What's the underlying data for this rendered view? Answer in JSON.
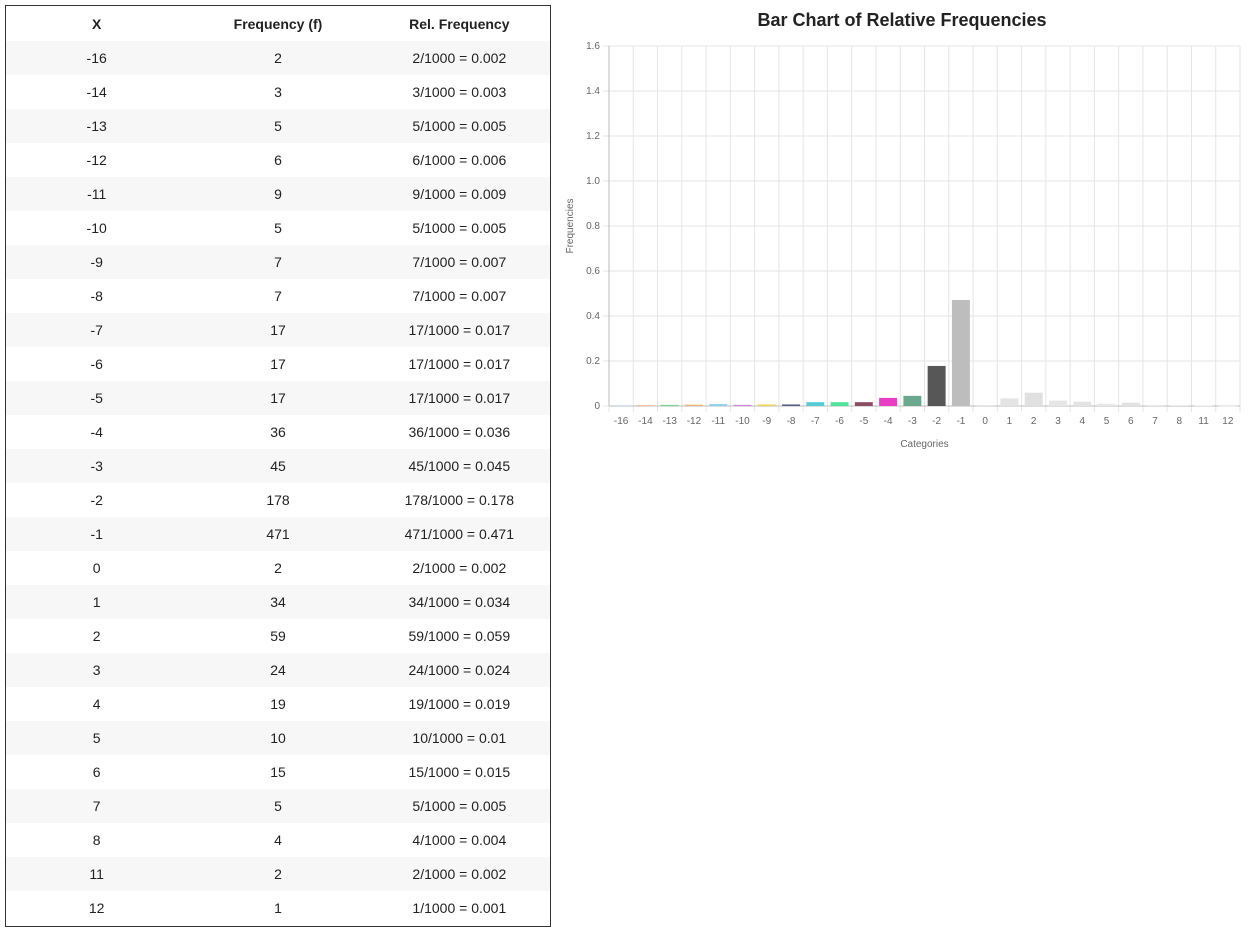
{
  "table": {
    "headers": [
      "X",
      "Frequency (f)",
      "Rel. Frequency"
    ],
    "rows": [
      [
        "-16",
        "2",
        "2/1000 = 0.002"
      ],
      [
        "-14",
        "3",
        "3/1000 = 0.003"
      ],
      [
        "-13",
        "5",
        "5/1000 = 0.005"
      ],
      [
        "-12",
        "6",
        "6/1000 = 0.006"
      ],
      [
        "-11",
        "9",
        "9/1000 = 0.009"
      ],
      [
        "-10",
        "5",
        "5/1000 = 0.005"
      ],
      [
        "-9",
        "7",
        "7/1000 = 0.007"
      ],
      [
        "-8",
        "7",
        "7/1000 = 0.007"
      ],
      [
        "-7",
        "17",
        "17/1000 = 0.017"
      ],
      [
        "-6",
        "17",
        "17/1000 = 0.017"
      ],
      [
        "-5",
        "17",
        "17/1000 = 0.017"
      ],
      [
        "-4",
        "36",
        "36/1000 = 0.036"
      ],
      [
        "-3",
        "45",
        "45/1000 = 0.045"
      ],
      [
        "-2",
        "178",
        "178/1000 = 0.178"
      ],
      [
        "-1",
        "471",
        "471/1000 = 0.471"
      ],
      [
        "0",
        "2",
        "2/1000 = 0.002"
      ],
      [
        "1",
        "34",
        "34/1000 = 0.034"
      ],
      [
        "2",
        "59",
        "59/1000 = 0.059"
      ],
      [
        "3",
        "24",
        "24/1000 = 0.024"
      ],
      [
        "4",
        "19",
        "19/1000 = 0.019"
      ],
      [
        "5",
        "10",
        "10/1000 = 0.01"
      ],
      [
        "6",
        "15",
        "15/1000 = 0.015"
      ],
      [
        "7",
        "5",
        "5/1000 = 0.005"
      ],
      [
        "8",
        "4",
        "4/1000 = 0.004"
      ],
      [
        "11",
        "2",
        "2/1000 = 0.002"
      ],
      [
        "12",
        "1",
        "1/1000 = 0.001"
      ]
    ]
  },
  "chart_data": {
    "type": "bar",
    "title": "Bar Chart of Relative Frequencies",
    "xlabel": "Categories",
    "ylabel": "Frequencies",
    "categories": [
      "-16",
      "-14",
      "-13",
      "-12",
      "-11",
      "-10",
      "-9",
      "-8",
      "-7",
      "-6",
      "-5",
      "-4",
      "-3",
      "-2",
      "-1",
      "0",
      "1",
      "2",
      "3",
      "4",
      "5",
      "6",
      "7",
      "8",
      "11",
      "12"
    ],
    "values": [
      0.002,
      0.003,
      0.005,
      0.006,
      0.009,
      0.005,
      0.007,
      0.007,
      0.017,
      0.017,
      0.017,
      0.036,
      0.045,
      0.178,
      0.471,
      0.002,
      0.034,
      0.059,
      0.024,
      0.019,
      0.01,
      0.015,
      0.005,
      0.004,
      0.002,
      0.001
    ],
    "colors": [
      "#a4c2e6",
      "#f2a47a",
      "#7bd68a",
      "#f1b27a",
      "#8fd3ee",
      "#d481e0",
      "#efd45c",
      "#5a5f86",
      "#56cbd2",
      "#4fe39c",
      "#8c4a63",
      "#e83dc2",
      "#6aa98d",
      "#575757",
      "#bdbdbd",
      "#d6d6d6",
      "#e4e4e4",
      "#e0e0e0",
      "#e6e6e6",
      "#e3e3e3",
      "#e7e7e7",
      "#e2e2e2",
      "#ececec",
      "#ededed",
      "#eeeeee",
      "#efefef"
    ],
    "ylim": [
      0,
      1.6
    ],
    "yticks": [
      "0",
      "0.2",
      "0.4",
      "0.6",
      "0.8",
      "1.0",
      "1.2",
      "1.4",
      "1.6"
    ],
    "grid": true,
    "legend": "none"
  }
}
